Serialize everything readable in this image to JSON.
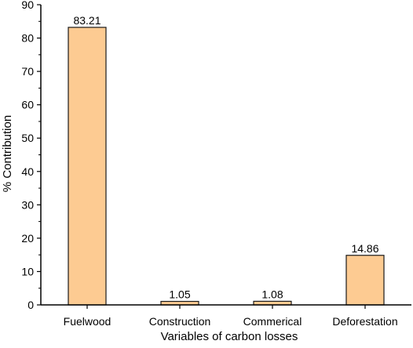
{
  "chart_data": {
    "type": "bar",
    "categories": [
      "Fuelwood",
      "Construction",
      "Commerical",
      "Deforestation"
    ],
    "values": [
      83.21,
      1.05,
      1.08,
      14.86
    ],
    "data_labels": [
      "83.21",
      "1.05",
      "1.08",
      "14.86"
    ],
    "xlabel": "Variables of carbon losses",
    "ylabel": "% Contribution",
    "ylim": [
      0,
      90
    ],
    "yticks": [
      0,
      10,
      20,
      30,
      40,
      50,
      60,
      70,
      80,
      90
    ],
    "grid": false,
    "bar_fill": "#fdcb92",
    "bar_stroke": "#1a1a1a",
    "axis_color": "#000000"
  }
}
